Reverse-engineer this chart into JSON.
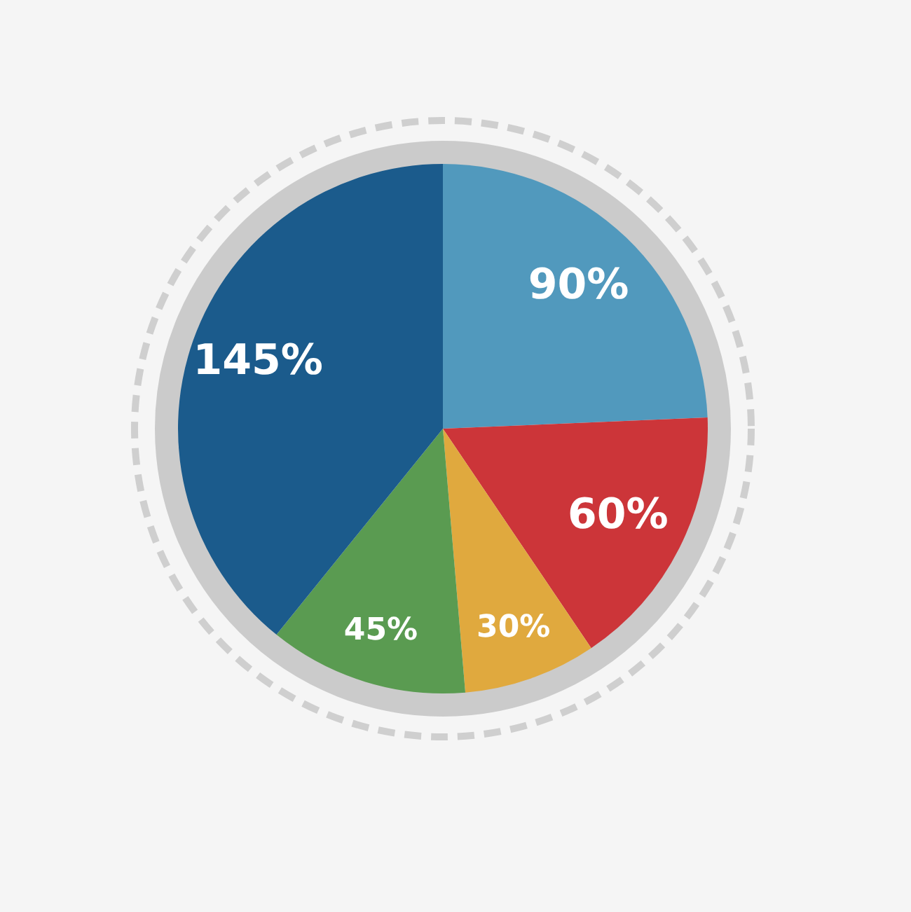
{
  "chart_data": {
    "type": "pie",
    "categories": [
      null,
      null,
      null,
      null,
      null
    ],
    "values": [
      90,
      60,
      30,
      45,
      145
    ],
    "colors": [
      "#5199bd",
      "#cc3539",
      "#e0a93e",
      "#5a9b51",
      "#1b5b8c"
    ],
    "value_labels": [
      "90%",
      "60%",
      "30%",
      "45%",
      "145%"
    ]
  }
}
